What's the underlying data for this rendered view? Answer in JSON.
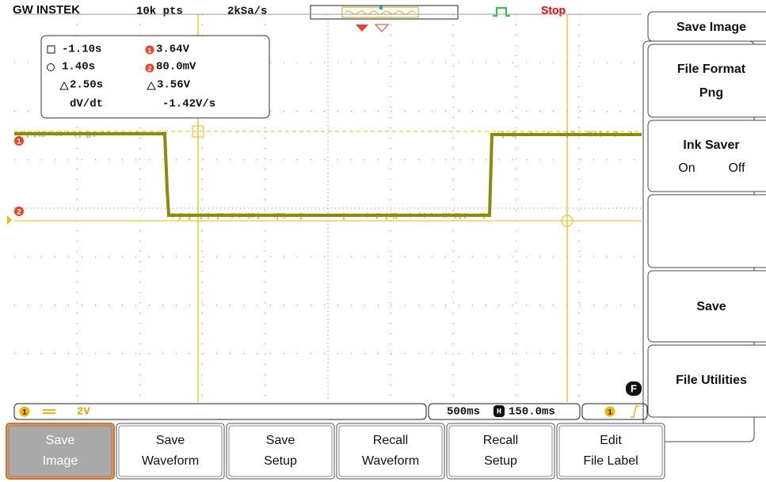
{
  "header": {
    "brand": "GW INSTEK",
    "record_length": "10k pts",
    "sample_rate": "2kSa/s",
    "run_state": "Stop"
  },
  "cursor_readout": {
    "t1": "-1.10s",
    "v1": "3.64V",
    "t2": "1.40s",
    "v2": "80.0mV",
    "dt": "2.50s",
    "dv": "3.56V",
    "slope_label": "dV/dt",
    "slope": "-1.42V/s"
  },
  "channel_markers": [
    "1",
    "2"
  ],
  "function_key": "F",
  "status_bar": {
    "channel": "1",
    "scale": "2V",
    "timebase": "500ms",
    "position_icon": "H",
    "position": "150.0ms",
    "trigger_source": "1"
  },
  "side_menu": {
    "title": "Save Image",
    "file_format": {
      "label": "File Format",
      "value": "Png"
    },
    "ink_saver": {
      "label": "Ink Saver",
      "options": [
        "On",
        "Off"
      ]
    },
    "save": "Save",
    "file_utilities": "File Utilities"
  },
  "soft_keys": [
    [
      "Save",
      "Image"
    ],
    [
      "Save",
      "Waveform"
    ],
    [
      "Save",
      "Setup"
    ],
    [
      "Recall",
      "Waveform"
    ],
    [
      "Recall",
      "Setup"
    ],
    [
      "Edit",
      "File Label"
    ]
  ]
}
